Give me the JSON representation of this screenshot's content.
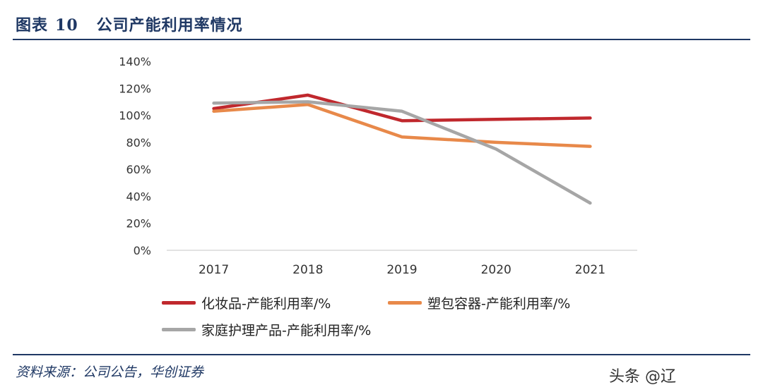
{
  "header": {
    "prefix": "图表",
    "number": "10",
    "title": "公司产能利用率情况"
  },
  "source": "资料来源：公司公告，华创证券",
  "watermark": "头条 @辽",
  "chart_data": {
    "type": "line",
    "categories": [
      "2017",
      "2018",
      "2019",
      "2020",
      "2021"
    ],
    "ylim": [
      0,
      140
    ],
    "yticks": [
      0,
      20,
      40,
      60,
      80,
      100,
      120,
      140
    ],
    "ytick_labels": [
      "0%",
      "20%",
      "40%",
      "60%",
      "80%",
      "100%",
      "120%",
      "140%"
    ],
    "grid": false,
    "legend_position": "bottom",
    "series": [
      {
        "name": "化妆品-产能利用率/%",
        "color": "#c0282d",
        "values": [
          105,
          115,
          96,
          97,
          98
        ]
      },
      {
        "name": "塑包容器-产能利用率/%",
        "color": "#e8894a",
        "values": [
          103,
          108,
          84,
          80,
          77
        ]
      },
      {
        "name": "家庭护理产品-产能利用率/%",
        "color": "#a6a6a6",
        "values": [
          109,
          110,
          103,
          75,
          35
        ]
      }
    ]
  }
}
